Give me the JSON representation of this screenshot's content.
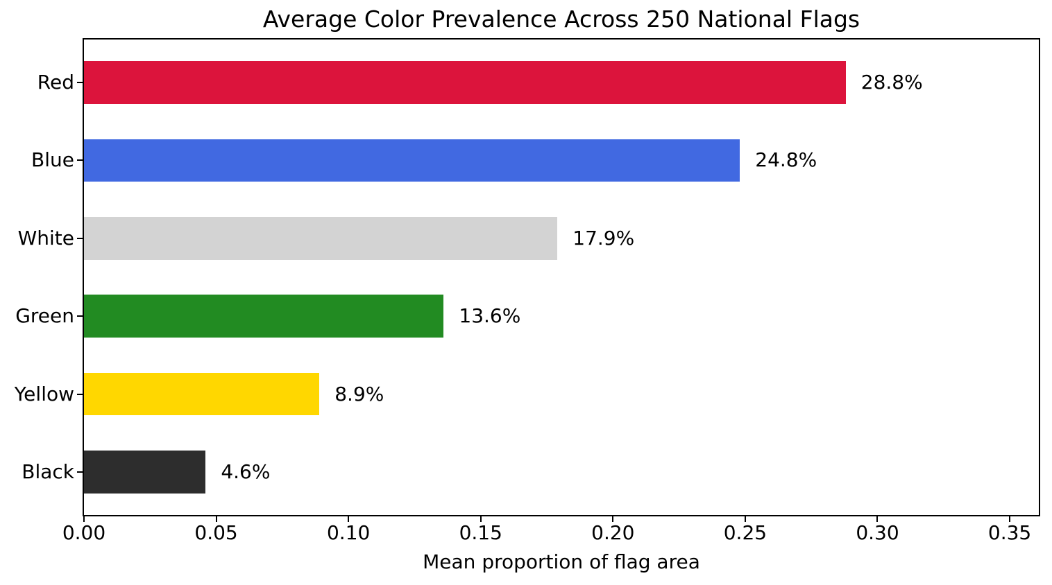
{
  "chart_data": {
    "type": "bar",
    "orientation": "horizontal",
    "title": "Average Color Prevalence Across 250 National Flags",
    "xlabel": "Mean proportion of flag area",
    "ylabel": "",
    "categories": [
      "Red",
      "Blue",
      "White",
      "Green",
      "Yellow",
      "Black"
    ],
    "values": [
      0.288,
      0.248,
      0.179,
      0.136,
      0.089,
      0.046
    ],
    "value_labels": [
      "28.8%",
      "24.8%",
      "17.9%",
      "13.6%",
      "8.9%",
      "4.6%"
    ],
    "bar_colors": [
      "#dc143c",
      "#4169e1",
      "#d3d3d3",
      "#228b22",
      "#ffd700",
      "#2d2d2d"
    ],
    "xlim": [
      0,
      0.361
    ],
    "xticks": [
      0,
      0.05,
      0.1,
      0.15,
      0.2,
      0.25,
      0.3,
      0.35
    ],
    "xtick_labels": [
      "0.00",
      "0.05",
      "0.10",
      "0.15",
      "0.20",
      "0.25",
      "0.30",
      "0.35"
    ],
    "grid": false,
    "legend_position": "none"
  },
  "colors": {
    "spine": "#000000",
    "text": "#000000",
    "background": "#ffffff"
  }
}
